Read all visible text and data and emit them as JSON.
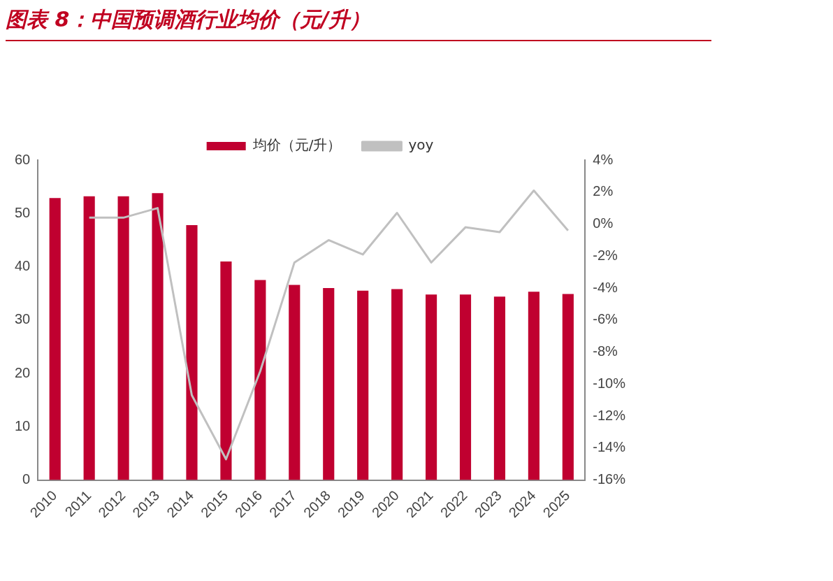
{
  "chart_data": {
    "type": "bar",
    "title": "图表 8：中国预调酒行业均价（元/升）",
    "categories": [
      "2010",
      "2011",
      "2012",
      "2013",
      "2014",
      "2015",
      "2016",
      "2017",
      "2018",
      "2019",
      "2020",
      "2021",
      "2022",
      "2023",
      "2024",
      "2025"
    ],
    "series": [
      {
        "name": "均价（元/升）",
        "color": "#c00030",
        "values": [
          52.9,
          53.2,
          53.2,
          53.8,
          47.8,
          41.0,
          37.5,
          36.6,
          36.0,
          35.5,
          35.8,
          34.8,
          34.8,
          34.4,
          35.3,
          34.9
        ]
      },
      {
        "name": "yoy",
        "type": "line",
        "axis": "y2",
        "color": "#c0c0c0",
        "values": [
          null,
          0.4,
          0.4,
          1.0,
          -10.7,
          -14.7,
          -9.2,
          -2.4,
          -1.0,
          -1.9,
          0.7,
          -2.4,
          -0.2,
          -0.5,
          2.1,
          -0.4
        ]
      }
    ],
    "ylim": [
      0,
      60
    ],
    "yticks": [
      0,
      10,
      20,
      30,
      40,
      50,
      60
    ],
    "y2lim": [
      -16,
      4
    ],
    "y2ticks": [
      {
        "value": 4,
        "label": "4%"
      },
      {
        "value": 2,
        "label": "2%"
      },
      {
        "value": 0,
        "label": "0%"
      },
      {
        "value": -2,
        "label": "-2%"
      },
      {
        "value": -4,
        "label": "-4%"
      },
      {
        "value": -6,
        "label": "-6%"
      },
      {
        "value": -8,
        "label": "-8%"
      },
      {
        "value": -10,
        "label": "-10%"
      },
      {
        "value": -12,
        "label": "-12%"
      },
      {
        "value": -14,
        "label": "-14%"
      },
      {
        "value": -16,
        "label": "-16%"
      }
    ],
    "legend": "top",
    "grid": false,
    "marker": "none"
  }
}
